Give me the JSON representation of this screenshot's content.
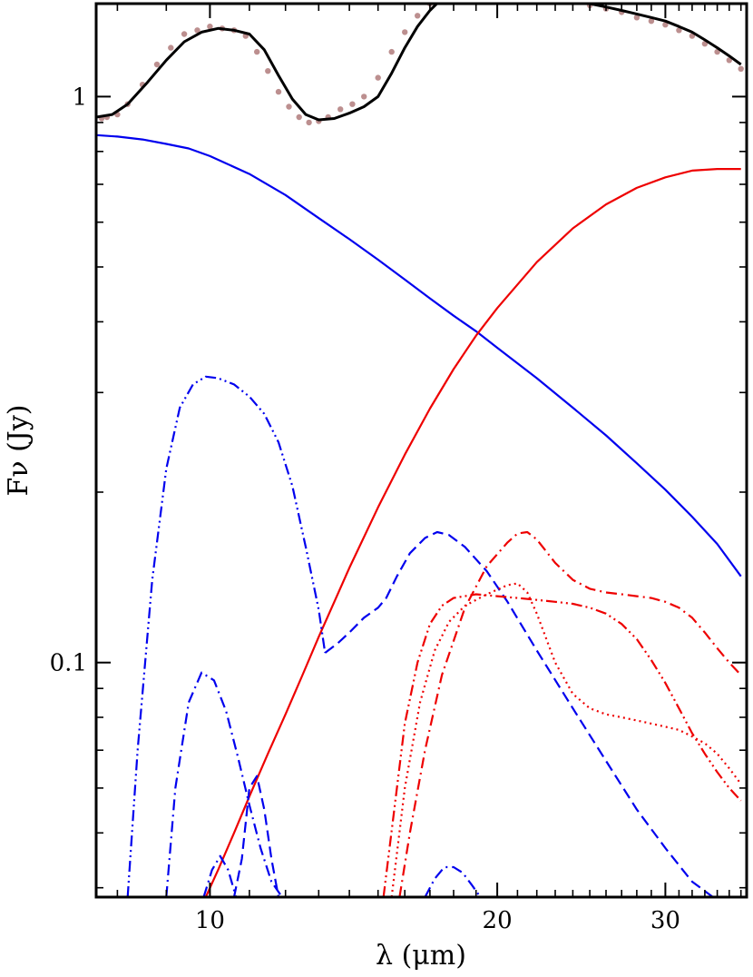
{
  "chart_data": {
    "type": "line",
    "title": "",
    "xlabel": "λ (μm)",
    "ylabel": "Fν (Jy)",
    "xscale": "log",
    "yscale": "log",
    "xlim": [
      7.6,
      36.5
    ],
    "ylim": [
      0.0385,
      1.46
    ],
    "xticks": [
      {
        "value": 10,
        "label": "10"
      },
      {
        "value": 20,
        "label": "20"
      },
      {
        "value": 30,
        "label": "30"
      }
    ],
    "yticks": [
      {
        "value": 0.1,
        "label": "0.1"
      },
      {
        "value": 1,
        "label": "1"
      }
    ],
    "grid": false,
    "legend": "none",
    "series": [
      {
        "kind": "observed",
        "color": "#bc8f8f",
        "style": "points",
        "x": [
          7.7,
          7.8,
          8.0,
          8.2,
          8.5,
          8.8,
          9.1,
          9.4,
          9.7,
          10.0,
          10.3,
          10.6,
          10.9,
          11.2,
          11.5,
          11.8,
          12.1,
          12.4,
          12.7,
          13.0,
          13.3,
          13.7,
          14.1,
          14.5,
          15.0,
          15.5,
          16.0,
          16.5,
          17.0,
          17.5,
          18.0,
          18.5,
          19.0,
          19.5,
          20.0,
          21.0,
          22.0,
          23.0,
          24.0,
          25.0,
          26.0,
          27.0,
          28.0,
          29.0,
          30.0,
          31.0,
          32.0,
          33.0,
          34.0,
          35.0,
          36.0
        ],
        "y": [
          0.915,
          0.92,
          0.93,
          0.97,
          1.05,
          1.14,
          1.22,
          1.29,
          1.31,
          1.33,
          1.32,
          1.31,
          1.28,
          1.2,
          1.11,
          1.02,
          0.96,
          0.92,
          0.9,
          0.905,
          0.92,
          0.95,
          0.97,
          1.0,
          1.08,
          1.2,
          1.3,
          1.39,
          1.46,
          1.52,
          1.57,
          1.59,
          1.6,
          1.6,
          1.59,
          1.57,
          1.54,
          1.51,
          1.48,
          1.45,
          1.43,
          1.41,
          1.38,
          1.36,
          1.34,
          1.31,
          1.28,
          1.24,
          1.2,
          1.16,
          1.12
        ]
      },
      {
        "kind": "total-model",
        "color": "#000000",
        "style": "solid",
        "x": [
          7.6,
          7.9,
          8.2,
          8.6,
          9.0,
          9.4,
          9.8,
          10.2,
          10.6,
          11.0,
          11.4,
          11.8,
          12.2,
          12.6,
          13.0,
          13.5,
          14.0,
          14.5,
          15.0,
          15.5,
          16.0,
          16.5,
          17.0,
          17.5,
          18.0,
          18.5,
          19.0,
          19.5,
          20.0,
          21.0,
          22.0,
          23.0,
          24.0,
          25.0,
          26.0,
          27.0,
          28.0,
          29.0,
          30.0,
          31.0,
          32.0,
          33.0,
          34.0,
          35.0,
          36.0
        ],
        "y": [
          0.92,
          0.93,
          0.97,
          1.06,
          1.16,
          1.25,
          1.3,
          1.32,
          1.31,
          1.29,
          1.21,
          1.09,
          0.99,
          0.93,
          0.91,
          0.915,
          0.935,
          0.96,
          1.0,
          1.1,
          1.22,
          1.33,
          1.42,
          1.49,
          1.54,
          1.58,
          1.6,
          1.6,
          1.59,
          1.57,
          1.54,
          1.51,
          1.48,
          1.46,
          1.44,
          1.42,
          1.4,
          1.38,
          1.36,
          1.33,
          1.3,
          1.26,
          1.22,
          1.18,
          1.14
        ]
      },
      {
        "kind": "blue-solid",
        "color": "#0000ee",
        "style": "solid",
        "x": [
          7.6,
          8.0,
          8.5,
          9.0,
          9.5,
          10.0,
          11.0,
          12.0,
          13.0,
          14.0,
          15.0,
          16.0,
          17.0,
          18.0,
          19.0,
          20.0,
          22.0,
          24.0,
          26.0,
          28.0,
          30.0,
          32.0,
          34.0,
          36.0
        ],
        "y": [
          0.855,
          0.85,
          0.84,
          0.825,
          0.81,
          0.785,
          0.73,
          0.67,
          0.61,
          0.56,
          0.515,
          0.475,
          0.44,
          0.41,
          0.385,
          0.36,
          0.318,
          0.282,
          0.252,
          0.225,
          0.202,
          0.181,
          0.162,
          0.142
        ]
      },
      {
        "kind": "red-solid",
        "color": "#ee0000",
        "style": "solid",
        "x": [
          9.9,
          10.2,
          10.6,
          11.0,
          11.5,
          12.0,
          12.5,
          13.0,
          13.5,
          14.0,
          15.0,
          16.0,
          17.0,
          18.0,
          19.0,
          20.0,
          22.0,
          24.0,
          26.0,
          28.0,
          30.0,
          32.0,
          34.0,
          36.0
        ],
        "y": [
          0.0385,
          0.043,
          0.05,
          0.058,
          0.069,
          0.081,
          0.095,
          0.111,
          0.128,
          0.147,
          0.188,
          0.233,
          0.281,
          0.33,
          0.378,
          0.423,
          0.51,
          0.585,
          0.645,
          0.69,
          0.72,
          0.74,
          0.745,
          0.745
        ]
      },
      {
        "kind": "blue-dash-dot-dot-large",
        "color": "#0000ee",
        "style": "dash-dot-dot",
        "x": [
          8.2,
          8.4,
          8.7,
          9.0,
          9.3,
          9.6,
          9.9,
          10.2,
          10.6,
          11.0,
          11.4,
          11.8,
          12.2,
          12.6,
          13.0,
          13.2
        ],
        "y": [
          0.0385,
          0.07,
          0.14,
          0.22,
          0.282,
          0.31,
          0.32,
          0.318,
          0.31,
          0.295,
          0.275,
          0.245,
          0.205,
          0.16,
          0.124,
          0.104
        ]
      },
      {
        "kind": "blue-dashed",
        "color": "#0000ee",
        "style": "dashed",
        "x": [
          13.2,
          13.6,
          14.0,
          14.5,
          15.0,
          15.3,
          15.7,
          16.2,
          16.8,
          17.3,
          17.8,
          18.5,
          19.5,
          20.5,
          22.0,
          24.0,
          26.0,
          28.0,
          30.0,
          32.0,
          34.0,
          34.5
        ],
        "y": [
          0.104,
          0.108,
          0.113,
          0.12,
          0.125,
          0.13,
          0.142,
          0.156,
          0.166,
          0.17,
          0.168,
          0.16,
          0.145,
          0.128,
          0.105,
          0.083,
          0.067,
          0.055,
          0.047,
          0.041,
          0.038,
          0.0385
        ]
      },
      {
        "kind": "blue-dash-dot-small",
        "color": "#0000ee",
        "style": "dash-dot",
        "x": [
          9.0,
          9.2,
          9.5,
          9.8,
          10.1,
          10.4,
          10.7,
          11.0,
          11.3,
          11.6,
          11.9
        ],
        "y": [
          0.0385,
          0.06,
          0.085,
          0.096,
          0.093,
          0.082,
          0.068,
          0.056,
          0.047,
          0.041,
          0.0385
        ]
      },
      {
        "kind": "blue-dashed-narrow",
        "color": "#0000ee",
        "style": "dashed",
        "x": [
          10.6,
          10.8,
          11.0,
          11.2,
          11.4,
          11.6,
          11.8
        ],
        "y": [
          0.0385,
          0.045,
          0.06,
          0.063,
          0.055,
          0.045,
          0.0385
        ]
      },
      {
        "kind": "blue-dash-dot-bump",
        "color": "#0000ee",
        "style": "dash-dot",
        "x": [
          9.85,
          10.05,
          10.25,
          10.45,
          10.65
        ],
        "y": [
          0.0385,
          0.043,
          0.0455,
          0.043,
          0.0385
        ]
      },
      {
        "kind": "blue-dash-dot-far",
        "color": "#0000ee",
        "style": "dash-dot",
        "x": [
          16.8,
          17.2,
          17.6,
          18.0,
          18.4,
          18.8,
          19.2
        ],
        "y": [
          0.0385,
          0.0415,
          0.0435,
          0.0435,
          0.0425,
          0.0405,
          0.0385
        ]
      },
      {
        "kind": "red-dash-dot",
        "color": "#ee0000",
        "style": "dash-dot",
        "x": [
          15.8,
          16.2,
          16.8,
          17.5,
          18.5,
          19.5,
          20.5,
          21.0,
          21.5,
          22.0,
          23.0,
          24.0,
          25.0,
          26.0,
          27.0,
          28.0,
          29.0,
          30.0,
          31.0,
          32.0,
          33.0,
          34.0,
          35.0,
          36.0
        ],
        "y": [
          0.0385,
          0.05,
          0.07,
          0.095,
          0.125,
          0.148,
          0.163,
          0.169,
          0.17,
          0.165,
          0.15,
          0.14,
          0.135,
          0.133,
          0.132,
          0.131,
          0.13,
          0.128,
          0.125,
          0.12,
          0.113,
          0.106,
          0.1,
          0.095
        ]
      },
      {
        "kind": "red-dash-dot-dot",
        "color": "#ee0000",
        "style": "dash-dot-dot",
        "x": [
          15.2,
          15.6,
          16.0,
          16.5,
          17.0,
          17.5,
          18.0,
          19.0,
          20.0,
          21.0,
          22.0,
          23.0,
          24.0,
          25.0,
          26.0,
          27.0,
          28.0,
          29.0,
          30.0,
          31.0,
          32.0,
          33.0,
          34.0,
          35.0,
          36.0
        ],
        "y": [
          0.0385,
          0.055,
          0.078,
          0.1,
          0.117,
          0.126,
          0.13,
          0.132,
          0.131,
          0.13,
          0.129,
          0.128,
          0.127,
          0.125,
          0.122,
          0.117,
          0.11,
          0.101,
          0.092,
          0.083,
          0.075,
          0.069,
          0.064,
          0.06,
          0.057
        ]
      },
      {
        "kind": "red-dotted",
        "color": "#ee0000",
        "style": "dotted",
        "x": [
          15.5,
          16.0,
          16.6,
          17.2,
          17.8,
          18.5,
          19.5,
          20.5,
          21.0,
          21.5,
          22.0,
          23.0,
          24.0,
          25.0,
          26.0,
          27.0,
          28.0,
          29.0,
          30.0,
          31.0,
          32.0,
          33.0,
          34.0,
          35.0,
          36.0
        ],
        "y": [
          0.0385,
          0.06,
          0.085,
          0.105,
          0.118,
          0.126,
          0.132,
          0.137,
          0.138,
          0.133,
          0.122,
          0.1,
          0.088,
          0.083,
          0.081,
          0.08,
          0.079,
          0.078,
          0.077,
          0.076,
          0.074,
          0.072,
          0.069,
          0.065,
          0.061
        ]
      }
    ]
  }
}
